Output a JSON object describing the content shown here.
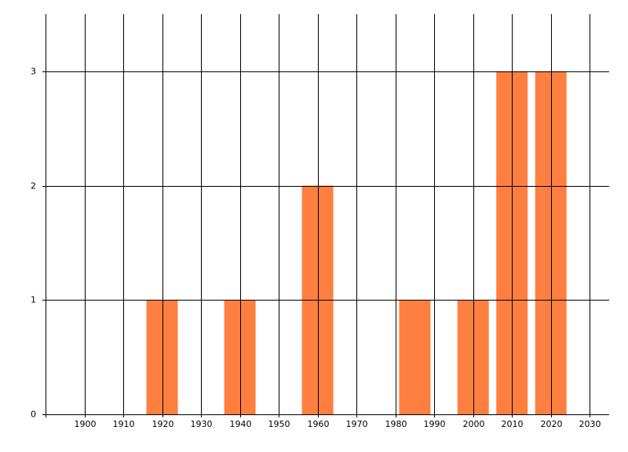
{
  "chart_data": {
    "type": "bar",
    "x": [
      1920,
      1940,
      1960,
      1985,
      2000,
      2010,
      2020
    ],
    "values": [
      1,
      1,
      2,
      1,
      1,
      3,
      3
    ],
    "color": "#ff7f40",
    "xlim": [
      1890,
      2035
    ],
    "xticks": [
      1900,
      1910,
      1920,
      1930,
      1940,
      1950,
      1960,
      1970,
      1980,
      1990,
      2000,
      2010,
      2020,
      2030
    ],
    "ylim": [
      0,
      3.5
    ],
    "yticks": [
      0,
      1,
      2,
      3
    ],
    "grid": true
  }
}
